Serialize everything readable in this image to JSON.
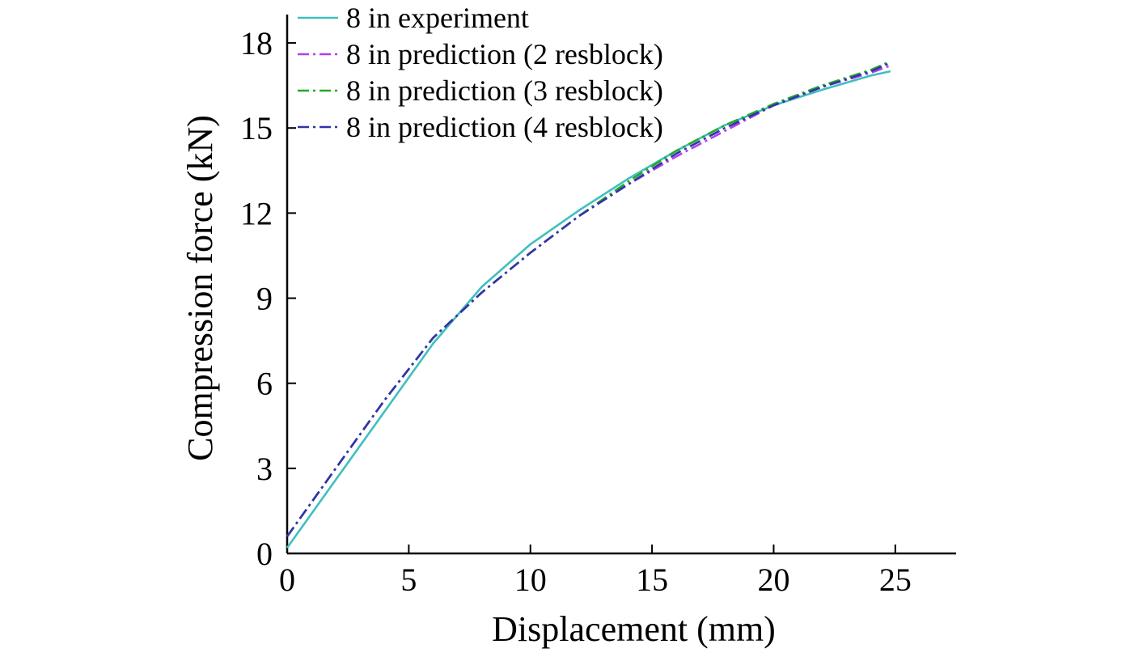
{
  "chart_data": {
    "type": "line",
    "xlabel": "Displacement (mm)",
    "ylabel": "Compression force (kN)",
    "xlim": [
      0,
      27.5
    ],
    "ylim": [
      0,
      19
    ],
    "xticks": [
      "0",
      "5",
      "10",
      "15",
      "20",
      "25"
    ],
    "yticks": [
      "0",
      "3",
      "6",
      "9",
      "12",
      "15",
      "18"
    ],
    "grid": false,
    "legend_position": "top-left",
    "series": [
      {
        "name": "8 in experiment",
        "color": "#3fbfbf",
        "dash": "solid",
        "points": [
          [
            0,
            0.2
          ],
          [
            2,
            2.6
          ],
          [
            4,
            5.0
          ],
          [
            6,
            7.4
          ],
          [
            8,
            9.4
          ],
          [
            10,
            10.9
          ],
          [
            12,
            12.1
          ],
          [
            14,
            13.2
          ],
          [
            16,
            14.2
          ],
          [
            18,
            15.1
          ],
          [
            20,
            15.8
          ],
          [
            22,
            16.35
          ],
          [
            24,
            16.85
          ],
          [
            24.8,
            17.0
          ]
        ]
      },
      {
        "name": "8 in prediction (2 resblock)",
        "color": "#b03ff0",
        "dash": "dashdot",
        "points": [
          [
            0,
            0.6
          ],
          [
            2,
            3.0
          ],
          [
            4,
            5.4
          ],
          [
            6,
            7.6
          ],
          [
            7,
            8.4
          ],
          [
            8,
            9.2
          ],
          [
            10,
            10.6
          ],
          [
            12,
            11.9
          ],
          [
            14,
            13.0
          ],
          [
            16,
            14.0
          ],
          [
            18,
            14.9
          ],
          [
            20,
            15.8
          ],
          [
            22,
            16.45
          ],
          [
            24,
            16.95
          ],
          [
            24.8,
            17.2
          ]
        ]
      },
      {
        "name": "8 in prediction (3 resblock)",
        "color": "#22aa22",
        "dash": "dashdot",
        "points": [
          [
            0,
            0.6
          ],
          [
            2,
            3.0
          ],
          [
            4,
            5.4
          ],
          [
            6,
            7.6
          ],
          [
            7,
            8.4
          ],
          [
            8,
            9.2
          ],
          [
            10,
            10.6
          ],
          [
            12,
            11.9
          ],
          [
            14,
            13.1
          ],
          [
            16,
            14.2
          ],
          [
            18,
            15.1
          ],
          [
            20,
            15.85
          ],
          [
            22,
            16.5
          ],
          [
            24,
            17.05
          ],
          [
            24.8,
            17.35
          ]
        ]
      },
      {
        "name": "8 in prediction (4 resblock)",
        "color": "#3333aa",
        "dash": "dashdot",
        "points": [
          [
            0,
            0.6
          ],
          [
            2,
            3.0
          ],
          [
            4,
            5.4
          ],
          [
            6,
            7.6
          ],
          [
            7,
            8.4
          ],
          [
            8,
            9.2
          ],
          [
            10,
            10.6
          ],
          [
            12,
            11.9
          ],
          [
            14,
            13.0
          ],
          [
            16,
            14.1
          ],
          [
            18,
            15.0
          ],
          [
            20,
            15.8
          ],
          [
            22,
            16.45
          ],
          [
            24,
            17.0
          ],
          [
            24.8,
            17.3
          ]
        ]
      }
    ]
  }
}
